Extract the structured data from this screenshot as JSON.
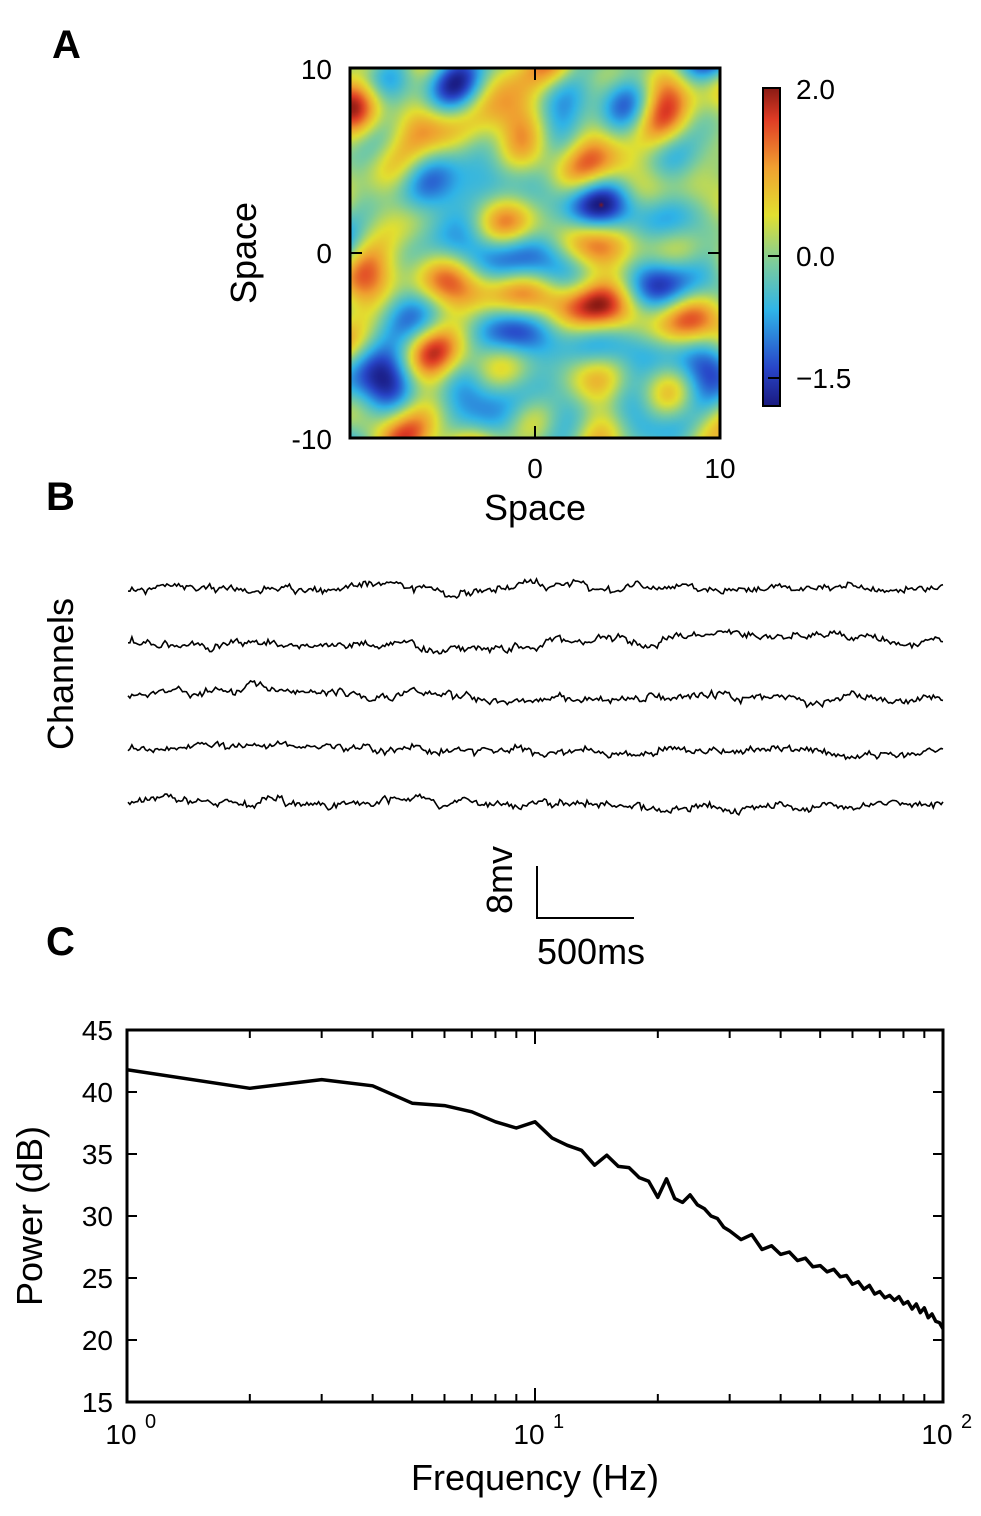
{
  "chart_data": [
    {
      "panel": "A",
      "type": "heatmap",
      "xlabel": "Space",
      "ylabel": "Space",
      "xlim": [
        -10,
        10
      ],
      "ylim": [
        -10,
        10
      ],
      "x_ticks": [
        "0",
        "10"
      ],
      "y_ticks": [
        "10",
        "0",
        "-10"
      ],
      "colorbar": {
        "range": [
          -1.7,
          2.1
        ],
        "ticks": [
          {
            "value": 2.0,
            "label": "2.0"
          },
          {
            "value": 0.0,
            "label": "0.0"
          },
          {
            "value": -1.5,
            "label": "−1.5"
          }
        ],
        "colormap": "jet"
      },
      "field_seed": 12,
      "field_components": 22
    },
    {
      "panel": "B",
      "type": "line",
      "ylabel": "Channels",
      "n_channels": 5,
      "duration_ms": 4150,
      "scale_bar": {
        "voltage_label": "8mv",
        "time_label": "500ms"
      },
      "traces": [
        {
          "seed": 3
        },
        {
          "seed": 7
        },
        {
          "seed": 11
        },
        {
          "seed": 19
        },
        {
          "seed": 23
        }
      ]
    },
    {
      "panel": "C",
      "type": "line",
      "xlabel": "Frequency (Hz)",
      "ylabel": "Power (dB)",
      "xscale": "log",
      "xlim": [
        1,
        100
      ],
      "ylim": [
        15,
        45
      ],
      "y_ticks": [
        15,
        20,
        25,
        30,
        35,
        40,
        45
      ],
      "x_ticks": [
        {
          "value": 1,
          "base": "10",
          "exp": "0"
        },
        {
          "value": 10,
          "base": "10",
          "exp": "1"
        },
        {
          "value": 100,
          "base": "10",
          "exp": "2"
        }
      ],
      "x": [
        1,
        2,
        3,
        4,
        5,
        6,
        7,
        8,
        9,
        10,
        11,
        12,
        13,
        14,
        15,
        16,
        17,
        18,
        19,
        20,
        21,
        22,
        23,
        24,
        25,
        26,
        27,
        28,
        29,
        30,
        32,
        34,
        36,
        38,
        40,
        42,
        44,
        46,
        48,
        50,
        52,
        54,
        56,
        58,
        60,
        62,
        64,
        66,
        68,
        70,
        72,
        74,
        76,
        78,
        80,
        82,
        84,
        86,
        88,
        90,
        92,
        94,
        96,
        98,
        100
      ],
      "y": [
        41.8,
        40.3,
        41.0,
        40.5,
        39.1,
        38.9,
        38.4,
        37.6,
        37.1,
        37.6,
        36.3,
        35.7,
        35.3,
        34.1,
        34.9,
        34.0,
        33.9,
        33.1,
        32.8,
        31.5,
        33.0,
        31.4,
        31.1,
        31.7,
        30.9,
        30.6,
        30.0,
        29.8,
        29.1,
        28.8,
        28.1,
        28.5,
        27.3,
        27.6,
        26.9,
        27.1,
        26.4,
        26.6,
        25.9,
        26.0,
        25.5,
        25.7,
        25.1,
        25.2,
        24.5,
        24.7,
        24.1,
        24.4,
        23.7,
        23.9,
        23.4,
        23.6,
        23.2,
        23.5,
        22.9,
        23.1,
        22.5,
        22.9,
        22.2,
        22.6,
        21.8,
        22.1,
        21.5,
        21.4,
        20.9
      ]
    }
  ]
}
